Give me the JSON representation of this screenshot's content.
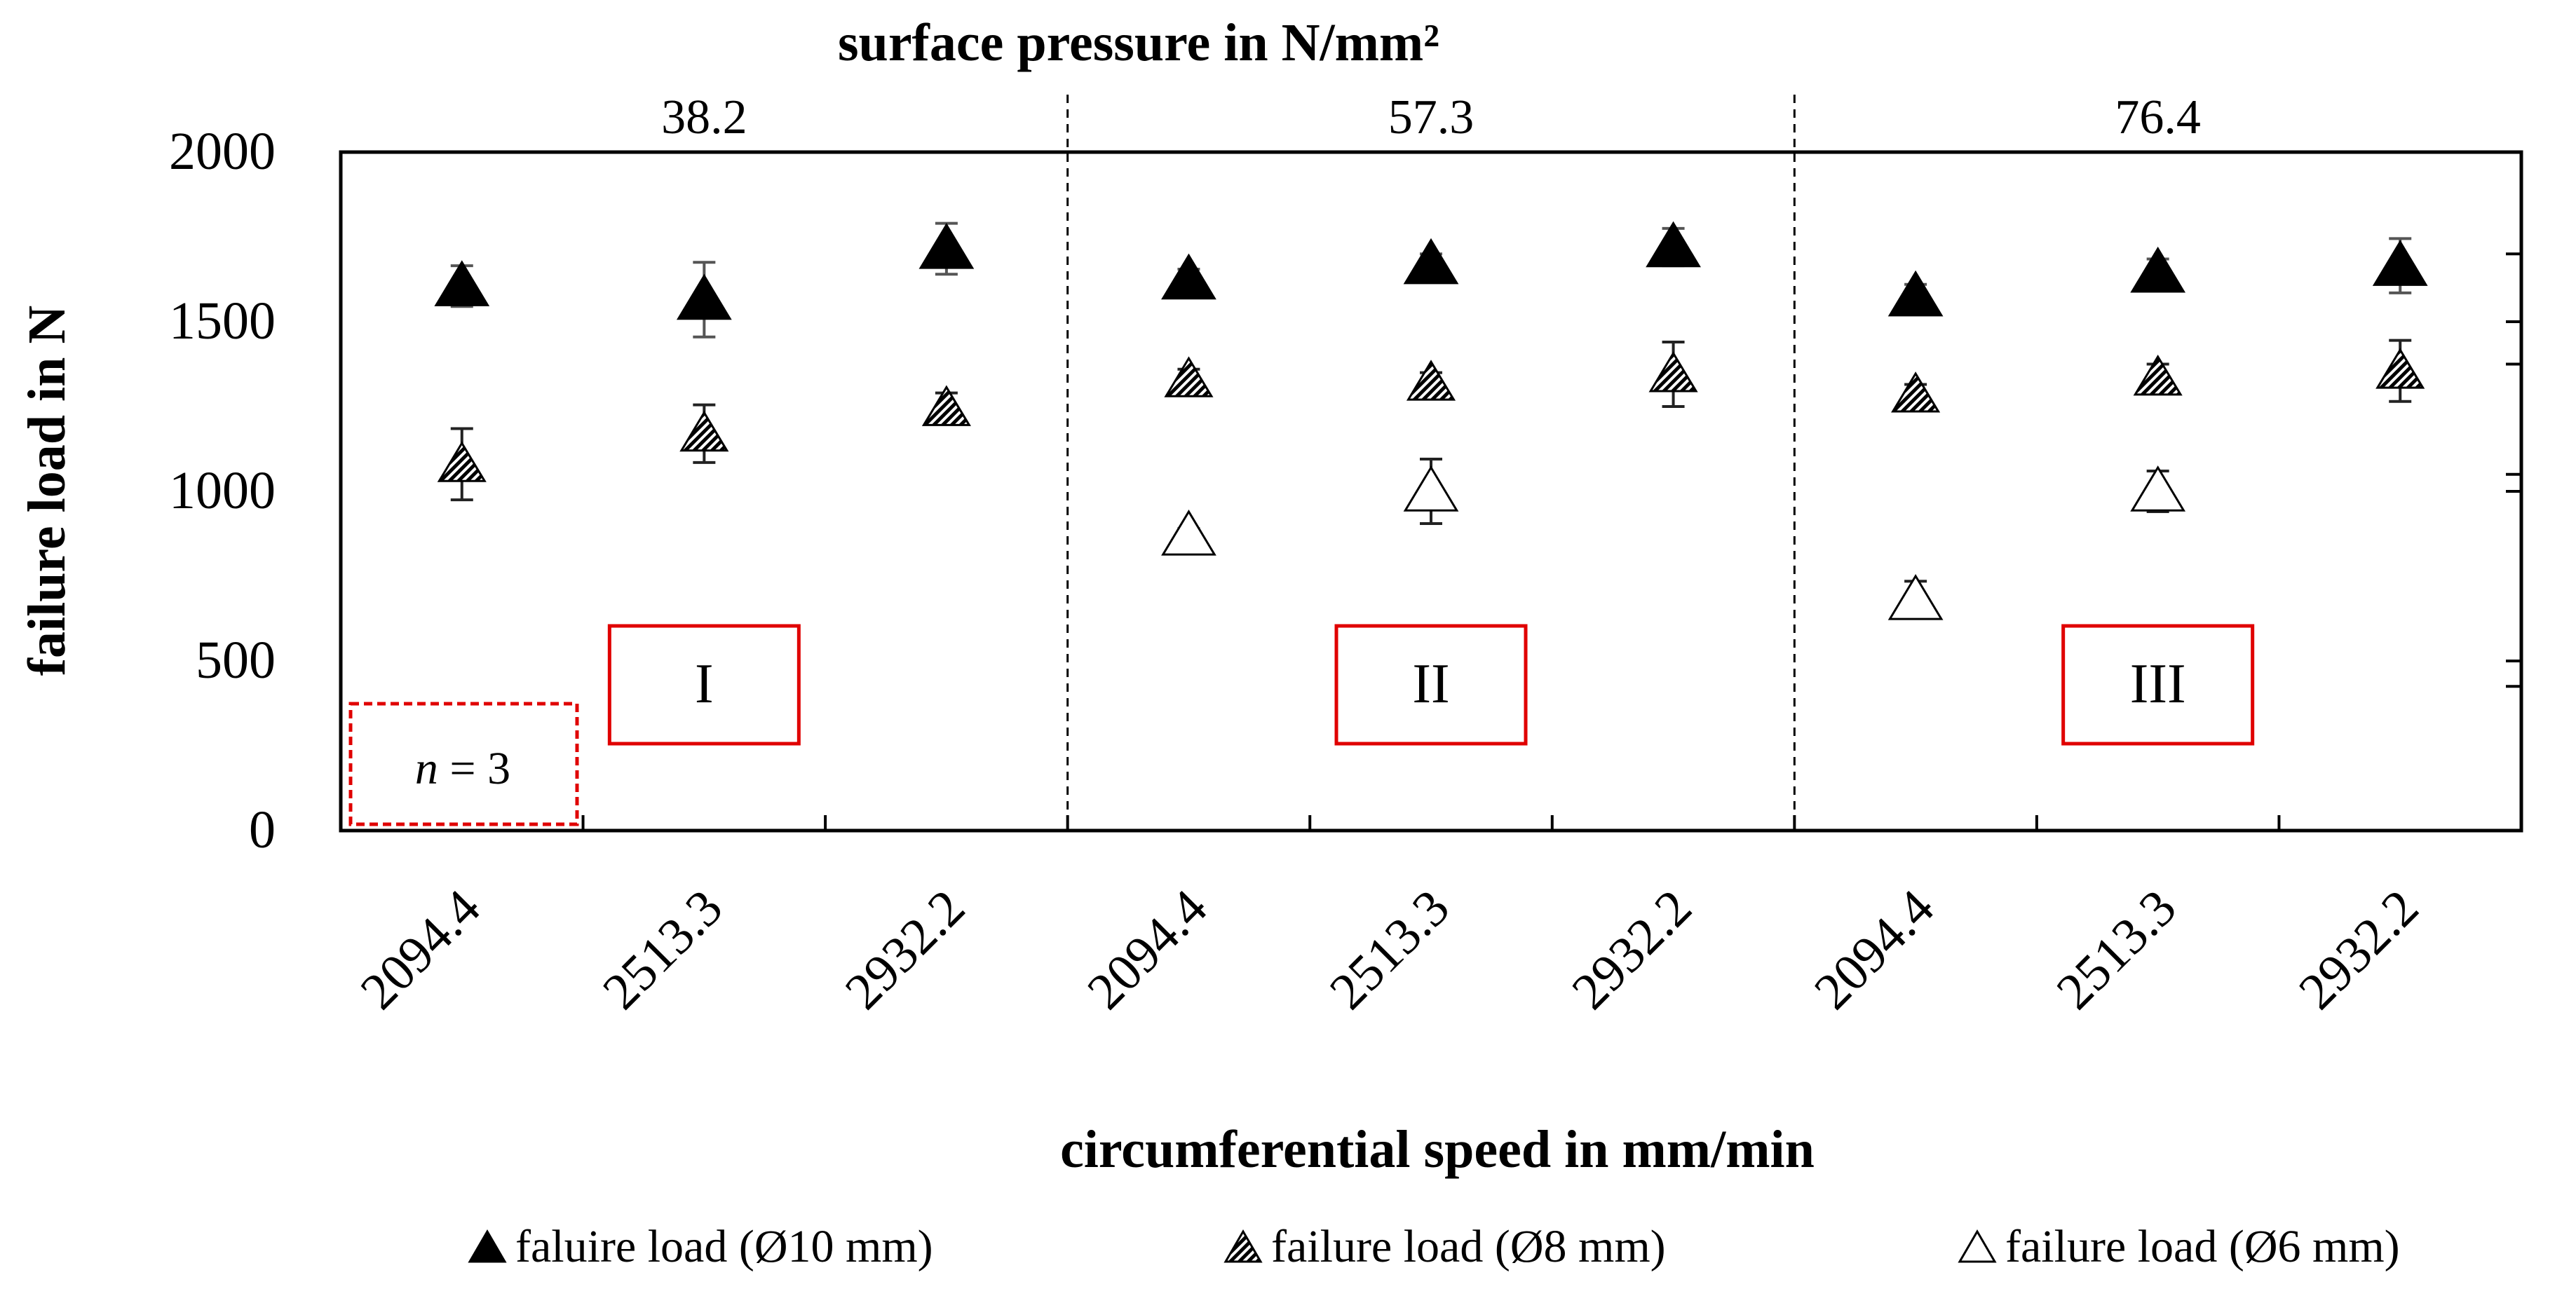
{
  "chart_data": {
    "type": "scatter",
    "title": "surface  pressure in N/mm²",
    "xlabel": "circumferential speed in mm/min",
    "ylabel": "failure load in N",
    "ylim": [
      0,
      2000
    ],
    "yticks": [
      0,
      500,
      1000,
      1500,
      2000
    ],
    "y_tick_labels": [
      "0",
      "500",
      "1000",
      "1500",
      "2000"
    ],
    "categories": [
      "2094.4",
      "2513.3",
      "2932.2",
      "2094.4",
      "2513.3",
      "2932.2",
      "2094.4",
      "2513.3",
      "2932.2"
    ],
    "groups": [
      {
        "pressure": "38.2",
        "label": "I"
      },
      {
        "pressure": "57.3",
        "label": "II"
      },
      {
        "pressure": "76.4",
        "label": "III"
      }
    ],
    "sample_note_prefix": "n",
    "sample_note_suffix": " = 3",
    "legend_position": "bottom",
    "series": [
      {
        "name": "faluire load (Ø10 mm)",
        "marker": "filled-triangle",
        "values": [
          1605,
          1565,
          1715,
          1625,
          1670,
          1720,
          1575,
          1645,
          1665
        ],
        "error": [
          60,
          110,
          75,
          30,
          30,
          55,
          35,
          40,
          80
        ]
      },
      {
        "name": "failure load (Ø8 mm)",
        "marker": "hatched-triangle",
        "values": [
          1080,
          1170,
          1245,
          1330,
          1320,
          1345,
          1285,
          1335,
          1355
        ],
        "error": [
          105,
          85,
          45,
          30,
          30,
          95,
          30,
          40,
          90
        ]
      },
      {
        "name": "failure load (Ø6 mm)",
        "marker": "open-triangle",
        "values": [
          null,
          null,
          null,
          870,
          1000,
          null,
          680,
          1000,
          null
        ],
        "error": [
          null,
          null,
          null,
          20,
          95,
          null,
          55,
          60,
          null
        ]
      }
    ]
  }
}
